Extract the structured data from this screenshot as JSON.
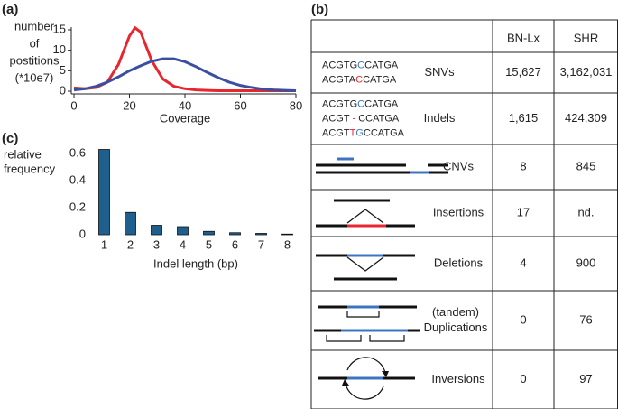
{
  "panels": [
    "(a)",
    "(b)",
    "(c)"
  ],
  "chart_data": [
    {
      "type": "line",
      "ylabel": [
        "number",
        "of",
        "postitions",
        "(*10e7)"
      ],
      "xlabel": "Coverage",
      "x": [
        0,
        4,
        8,
        12,
        16,
        20,
        22,
        24,
        28,
        32,
        36,
        40,
        44,
        48,
        52,
        56,
        60,
        64,
        68,
        72,
        76,
        80
      ],
      "series": [
        {
          "color": "#e8262e",
          "values": [
            0.8,
            0.6,
            0.9,
            2.2,
            6.5,
            13.5,
            15.5,
            14.5,
            7.5,
            3,
            1.2,
            0.6,
            0.3,
            0.2,
            0.1,
            0.1,
            0.1,
            0.1,
            0.1,
            0.1,
            0.1,
            0.1
          ]
        },
        {
          "color": "#3a4fa0",
          "values": [
            0.3,
            0.6,
            1.2,
            2.2,
            3.5,
            5,
            5.6,
            6.2,
            7.3,
            7.9,
            7.9,
            7.2,
            6,
            4.6,
            3.3,
            2.2,
            1.4,
            0.9,
            0.5,
            0.3,
            0.2,
            0.1
          ]
        }
      ],
      "xlim": [
        0,
        80
      ],
      "xticks": [
        0,
        20,
        40,
        60,
        80
      ],
      "ylim": [
        0,
        15
      ],
      "yticks": [
        0,
        5,
        10,
        15
      ]
    },
    {
      "type": "bar",
      "ylabel": [
        "relative",
        "frequency"
      ],
      "xlabel": "Indel length (bp)",
      "categories": [
        "1",
        "2",
        "3",
        "4",
        "5",
        "6",
        "7",
        "8"
      ],
      "values": [
        0.63,
        0.165,
        0.07,
        0.06,
        0.025,
        0.015,
        0.01,
        0.005
      ],
      "color": "#1f5f8e",
      "ylim": [
        0,
        0.7
      ],
      "yticks": [
        0,
        0.2,
        0.4,
        0.6
      ]
    }
  ],
  "table": {
    "columns": [
      "BN-Lx",
      "SHR"
    ],
    "rows": [
      {
        "sequences": [
          "ACGTGCCATGA",
          "ACGTACCATGA"
        ],
        "label": [
          "SNVs"
        ],
        "values": [
          "15,627",
          "3,162,031"
        ]
      },
      {
        "sequences": [
          "ACGTGCCATGA",
          "ACGT - CCATGA",
          "ACGTTGCCATGA"
        ],
        "label": [
          "Indels"
        ],
        "values": [
          "1,615",
          "424,309"
        ]
      },
      {
        "label": [
          "CNVs"
        ],
        "values": [
          "8",
          "845"
        ]
      },
      {
        "label": [
          "Insertions"
        ],
        "values": [
          "17",
          "nd."
        ]
      },
      {
        "label": [
          "Deletions"
        ],
        "values": [
          "4",
          "900"
        ]
      },
      {
        "label": [
          "(tandem)",
          "Duplications"
        ],
        "values": [
          "0",
          "76"
        ]
      },
      {
        "label": [
          "Inversions"
        ],
        "values": [
          "0",
          "97"
        ]
      }
    ]
  }
}
